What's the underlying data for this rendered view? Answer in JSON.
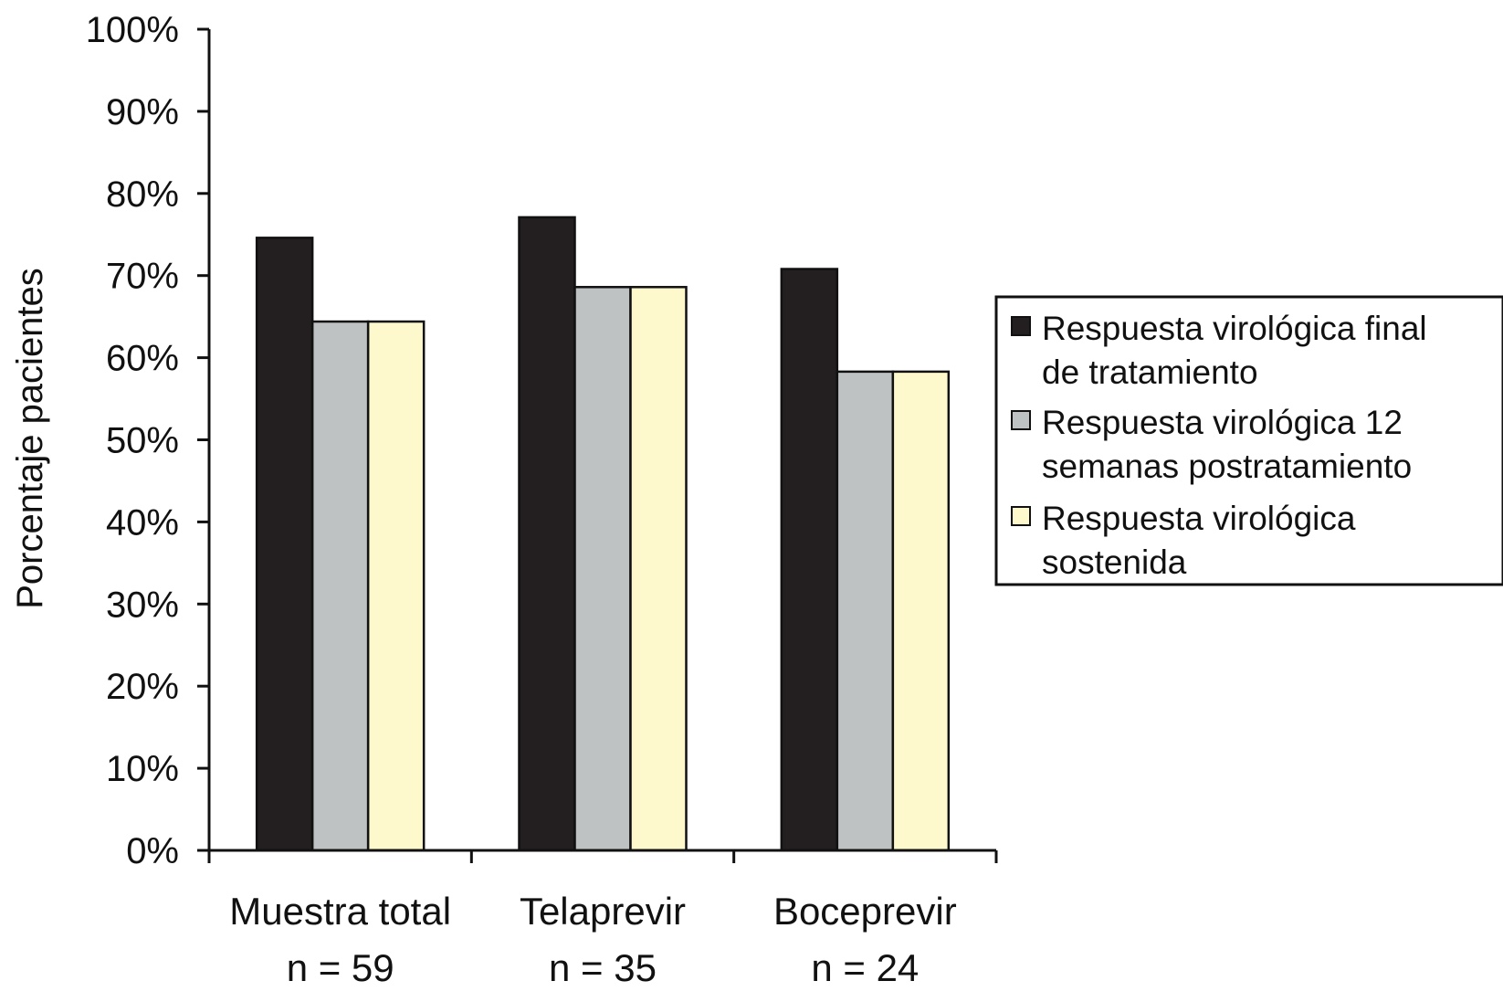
{
  "chart_data": {
    "type": "bar",
    "title": "",
    "xlabel": "",
    "ylabel": "Porcentaje pacientes",
    "ylim": [
      0,
      100
    ],
    "yticks": [
      "0%",
      "10%",
      "20%",
      "30%",
      "40%",
      "50%",
      "60%",
      "70%",
      "80%",
      "90%",
      "100%"
    ],
    "y_unit": "%",
    "grid": false,
    "legend_position": "right",
    "categories": [
      {
        "line1": "Muestra total",
        "line2": "n = 59"
      },
      {
        "line1": "Telaprevir",
        "line2": "n = 35"
      },
      {
        "line1": "Boceprevir",
        "line2": "n = 24"
      }
    ],
    "series": [
      {
        "name": "Respuesta virológica final de tratamiento",
        "legend_lines": [
          "Respuesta virológica final",
          "de tratamiento"
        ],
        "color": "#231f20",
        "values": [
          74.6,
          77.1,
          70.8
        ]
      },
      {
        "name": "Respuesta virológica 12 semanas postratamiento",
        "legend_lines": [
          "Respuesta virológica 12",
          "semanas postratamiento"
        ],
        "color": "#bfc2c3",
        "values": [
          64.4,
          68.6,
          58.3
        ]
      },
      {
        "name": "Respuesta virológica sostenida",
        "legend_lines": [
          "Respuesta virológica",
          "sostenida"
        ],
        "color": "#fdf9cd",
        "values": [
          64.4,
          68.6,
          58.3
        ]
      }
    ]
  }
}
